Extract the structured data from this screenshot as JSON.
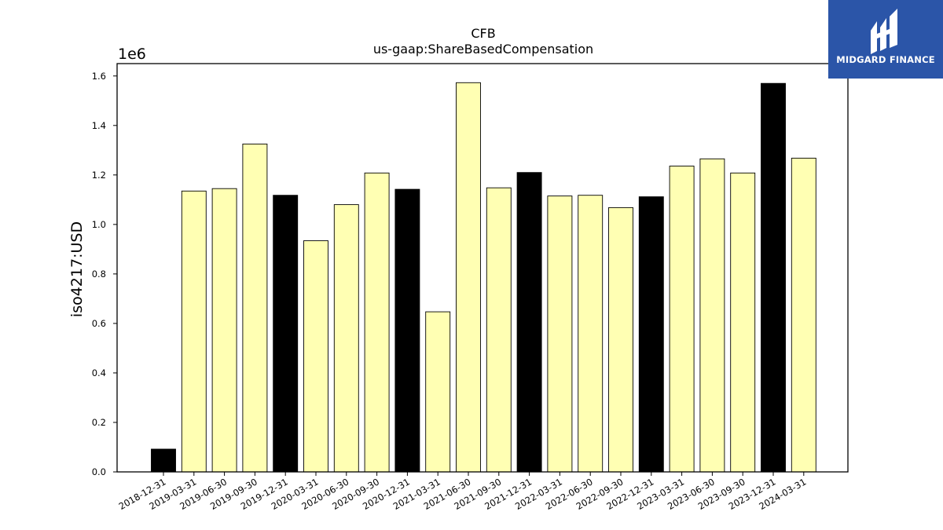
{
  "chart_data": {
    "type": "bar",
    "title": "CFB",
    "subtitle": "us-gaap:ShareBasedCompensation",
    "ylabel": "iso4217:USD",
    "xlabel": "",
    "y_offset_label": "1e6",
    "y_scale": 1000000,
    "ylim": [
      0,
      1650000
    ],
    "yticks": [
      0,
      200000,
      400000,
      600000,
      800000,
      1000000,
      1200000,
      1400000,
      1600000
    ],
    "ytick_labels": [
      "0.0",
      "0.2",
      "0.4",
      "0.6",
      "0.8",
      "1.0",
      "1.2",
      "1.4",
      "1.6"
    ],
    "grid": false,
    "categories": [
      "2018-12-31",
      "2019-03-31",
      "2019-06-30",
      "2019-09-30",
      "2019-12-31",
      "2020-03-31",
      "2020-06-30",
      "2020-09-30",
      "2020-12-31",
      "2021-03-31",
      "2021-06-30",
      "2021-09-30",
      "2021-12-31",
      "2022-03-31",
      "2022-06-30",
      "2022-09-30",
      "2022-12-31",
      "2023-03-31",
      "2023-06-30",
      "2023-09-30",
      "2023-12-31",
      "2024-03-31"
    ],
    "values": [
      92000,
      1135000,
      1145000,
      1325000,
      1118000,
      934000,
      1080000,
      1208000,
      1142000,
      647000,
      1573000,
      1148000,
      1210000,
      1115000,
      1118000,
      1068000,
      1112000,
      1236000,
      1265000,
      1208000,
      1570000,
      1268000
    ],
    "bar_colors": [
      "#000000",
      "#ffffb3",
      "#ffffb3",
      "#ffffb3",
      "#000000",
      "#ffffb3",
      "#ffffb3",
      "#ffffb3",
      "#000000",
      "#ffffb3",
      "#ffffb3",
      "#ffffb3",
      "#000000",
      "#ffffb3",
      "#ffffb3",
      "#ffffb3",
      "#000000",
      "#ffffb3",
      "#ffffb3",
      "#ffffb3",
      "#000000",
      "#ffffb3"
    ]
  },
  "logo": {
    "text": "MIDGARD FINANCE",
    "icon": "midgard-logo-icon",
    "background": "#2b55a8"
  }
}
